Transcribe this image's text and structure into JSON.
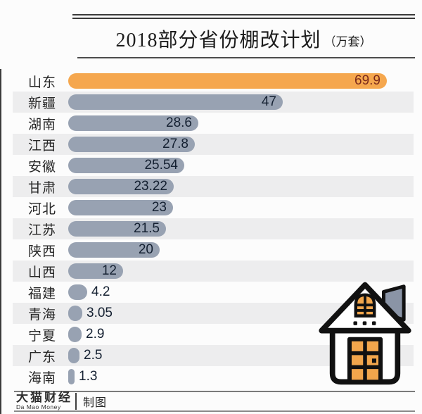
{
  "title": {
    "main": "2018部分省份棚改计划",
    "unit": "（万套）"
  },
  "chart_data": {
    "type": "bar",
    "orientation": "horizontal",
    "title": "2018部分省份棚改计划（万套）",
    "unit": "万套",
    "categories": [
      "山东",
      "新疆",
      "湖南",
      "江西",
      "安徽",
      "甘肃",
      "河北",
      "江苏",
      "陕西",
      "山西",
      "福建",
      "青海",
      "宁夏",
      "广东",
      "海南"
    ],
    "values": [
      69.9,
      47,
      28.6,
      27.8,
      25.54,
      23.22,
      23,
      21.5,
      20,
      12,
      4.2,
      3.05,
      2.9,
      2.5,
      1.3
    ],
    "value_labels": [
      "69.9",
      "47",
      "28.6",
      "27.8",
      "25.54",
      "23.22",
      "23",
      "21.5",
      "20",
      "12",
      "4.2",
      "3.05",
      "2.9",
      "2.5",
      "1.3"
    ],
    "xlim": [
      0,
      72
    ],
    "grid": false,
    "legend": false,
    "highlight_index": 0,
    "highlight_color": "#F5A74E",
    "bar_color": "#98A2B2",
    "highlight_value_color": "#7b2a1c",
    "value_color": "#142031",
    "stripe_color": "#ededee"
  },
  "footer": {
    "brand": "大猫财经",
    "brand_sub": "Da Mao Money",
    "credit": "制图"
  },
  "icons": {
    "house_icon": {
      "name": "house-icon",
      "outline_color": "#111111",
      "accent_color": "#F2A64C",
      "chimney_color": "#8A94A6",
      "fill_color": "#FFFFFF"
    }
  }
}
